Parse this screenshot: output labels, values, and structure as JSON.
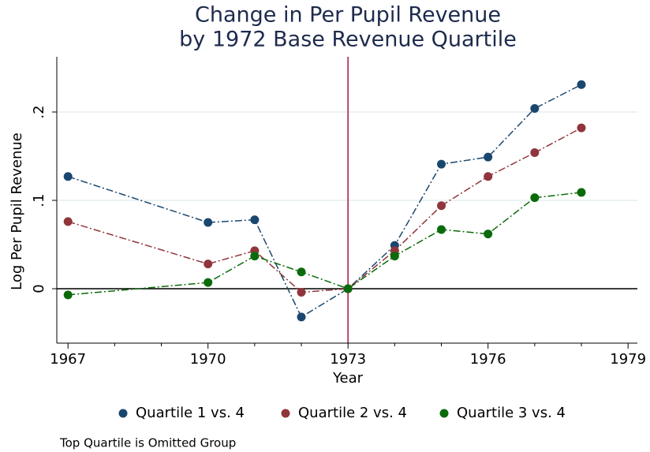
{
  "chart_data": {
    "type": "line",
    "title": [
      "Change in Per Pupil Revenue",
      "by 1972 Base Revenue Quartile"
    ],
    "xlabel": "Year",
    "ylabel": "Log Per Pupil Revenue",
    "note": "Top Quartile is Omitted Group",
    "x": [
      1967,
      1970,
      1971,
      1972,
      1973,
      1974,
      1975,
      1976,
      1977,
      1978
    ],
    "series": [
      {
        "name": "Quartile 1 vs. 4",
        "color": "#1a476f",
        "values": [
          0.127,
          0.075,
          0.078,
          -0.032,
          0,
          0.049,
          0.141,
          0.149,
          0.204,
          0.231
        ]
      },
      {
        "name": "Quartile 2 vs. 4",
        "color": "#90353b",
        "values": [
          0.076,
          0.028,
          0.043,
          -0.004,
          0,
          0.043,
          0.094,
          0.127,
          0.154,
          0.182
        ]
      },
      {
        "name": "Quartile 3 vs. 4",
        "color": "#0b6b0b",
        "values": [
          -0.007,
          0.007,
          0.037,
          0.019,
          0,
          0.037,
          0.067,
          0.062,
          0.103,
          0.109
        ]
      }
    ],
    "xlim": [
      1966.76,
      1979.2
    ],
    "ylim": [
      -0.0616,
      0.2625
    ],
    "xticks": [
      1967,
      1970,
      1973,
      1976,
      1979
    ],
    "xminorticks": [
      1968,
      1969,
      1971,
      1972,
      1974,
      1975,
      1977,
      1978
    ],
    "yticks": [
      {
        "value": 0,
        "label": "0"
      },
      {
        "value": 0.1,
        "label": ".1"
      },
      {
        "value": 0.2,
        "label": ".2"
      }
    ],
    "grid": true,
    "xline": 1973,
    "xline_color": "#a6173d",
    "yline": 0,
    "legend": "bottom"
  }
}
